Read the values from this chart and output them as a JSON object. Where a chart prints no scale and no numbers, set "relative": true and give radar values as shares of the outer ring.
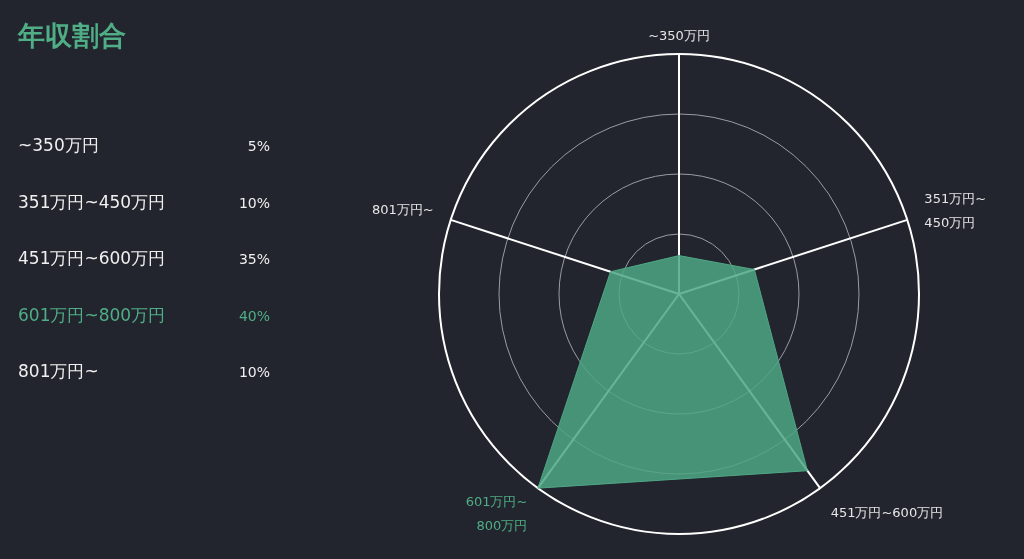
{
  "chart_data": [
    {
      "type": "other",
      "title": "年収割合",
      "categories": [
        "~350万円",
        "351万円~450万円",
        "451万円~600万円",
        "601万円~800万円",
        "801万円~"
      ],
      "value_labels": [
        "5%",
        "10%",
        "35%",
        "40%",
        "10%"
      ]
    },
    {
      "type": "radar",
      "relative": true,
      "categories": [
        "~350万円",
        "351万円~450万円",
        "451万円~600万円",
        "601万円~800万円",
        "801万円~"
      ],
      "series": [
        {
          "color": "#4ea784",
          "values": [
            0.16,
            0.33,
            0.91,
            1,
            0.3
          ]
        }
      ]
    }
  ]
}
